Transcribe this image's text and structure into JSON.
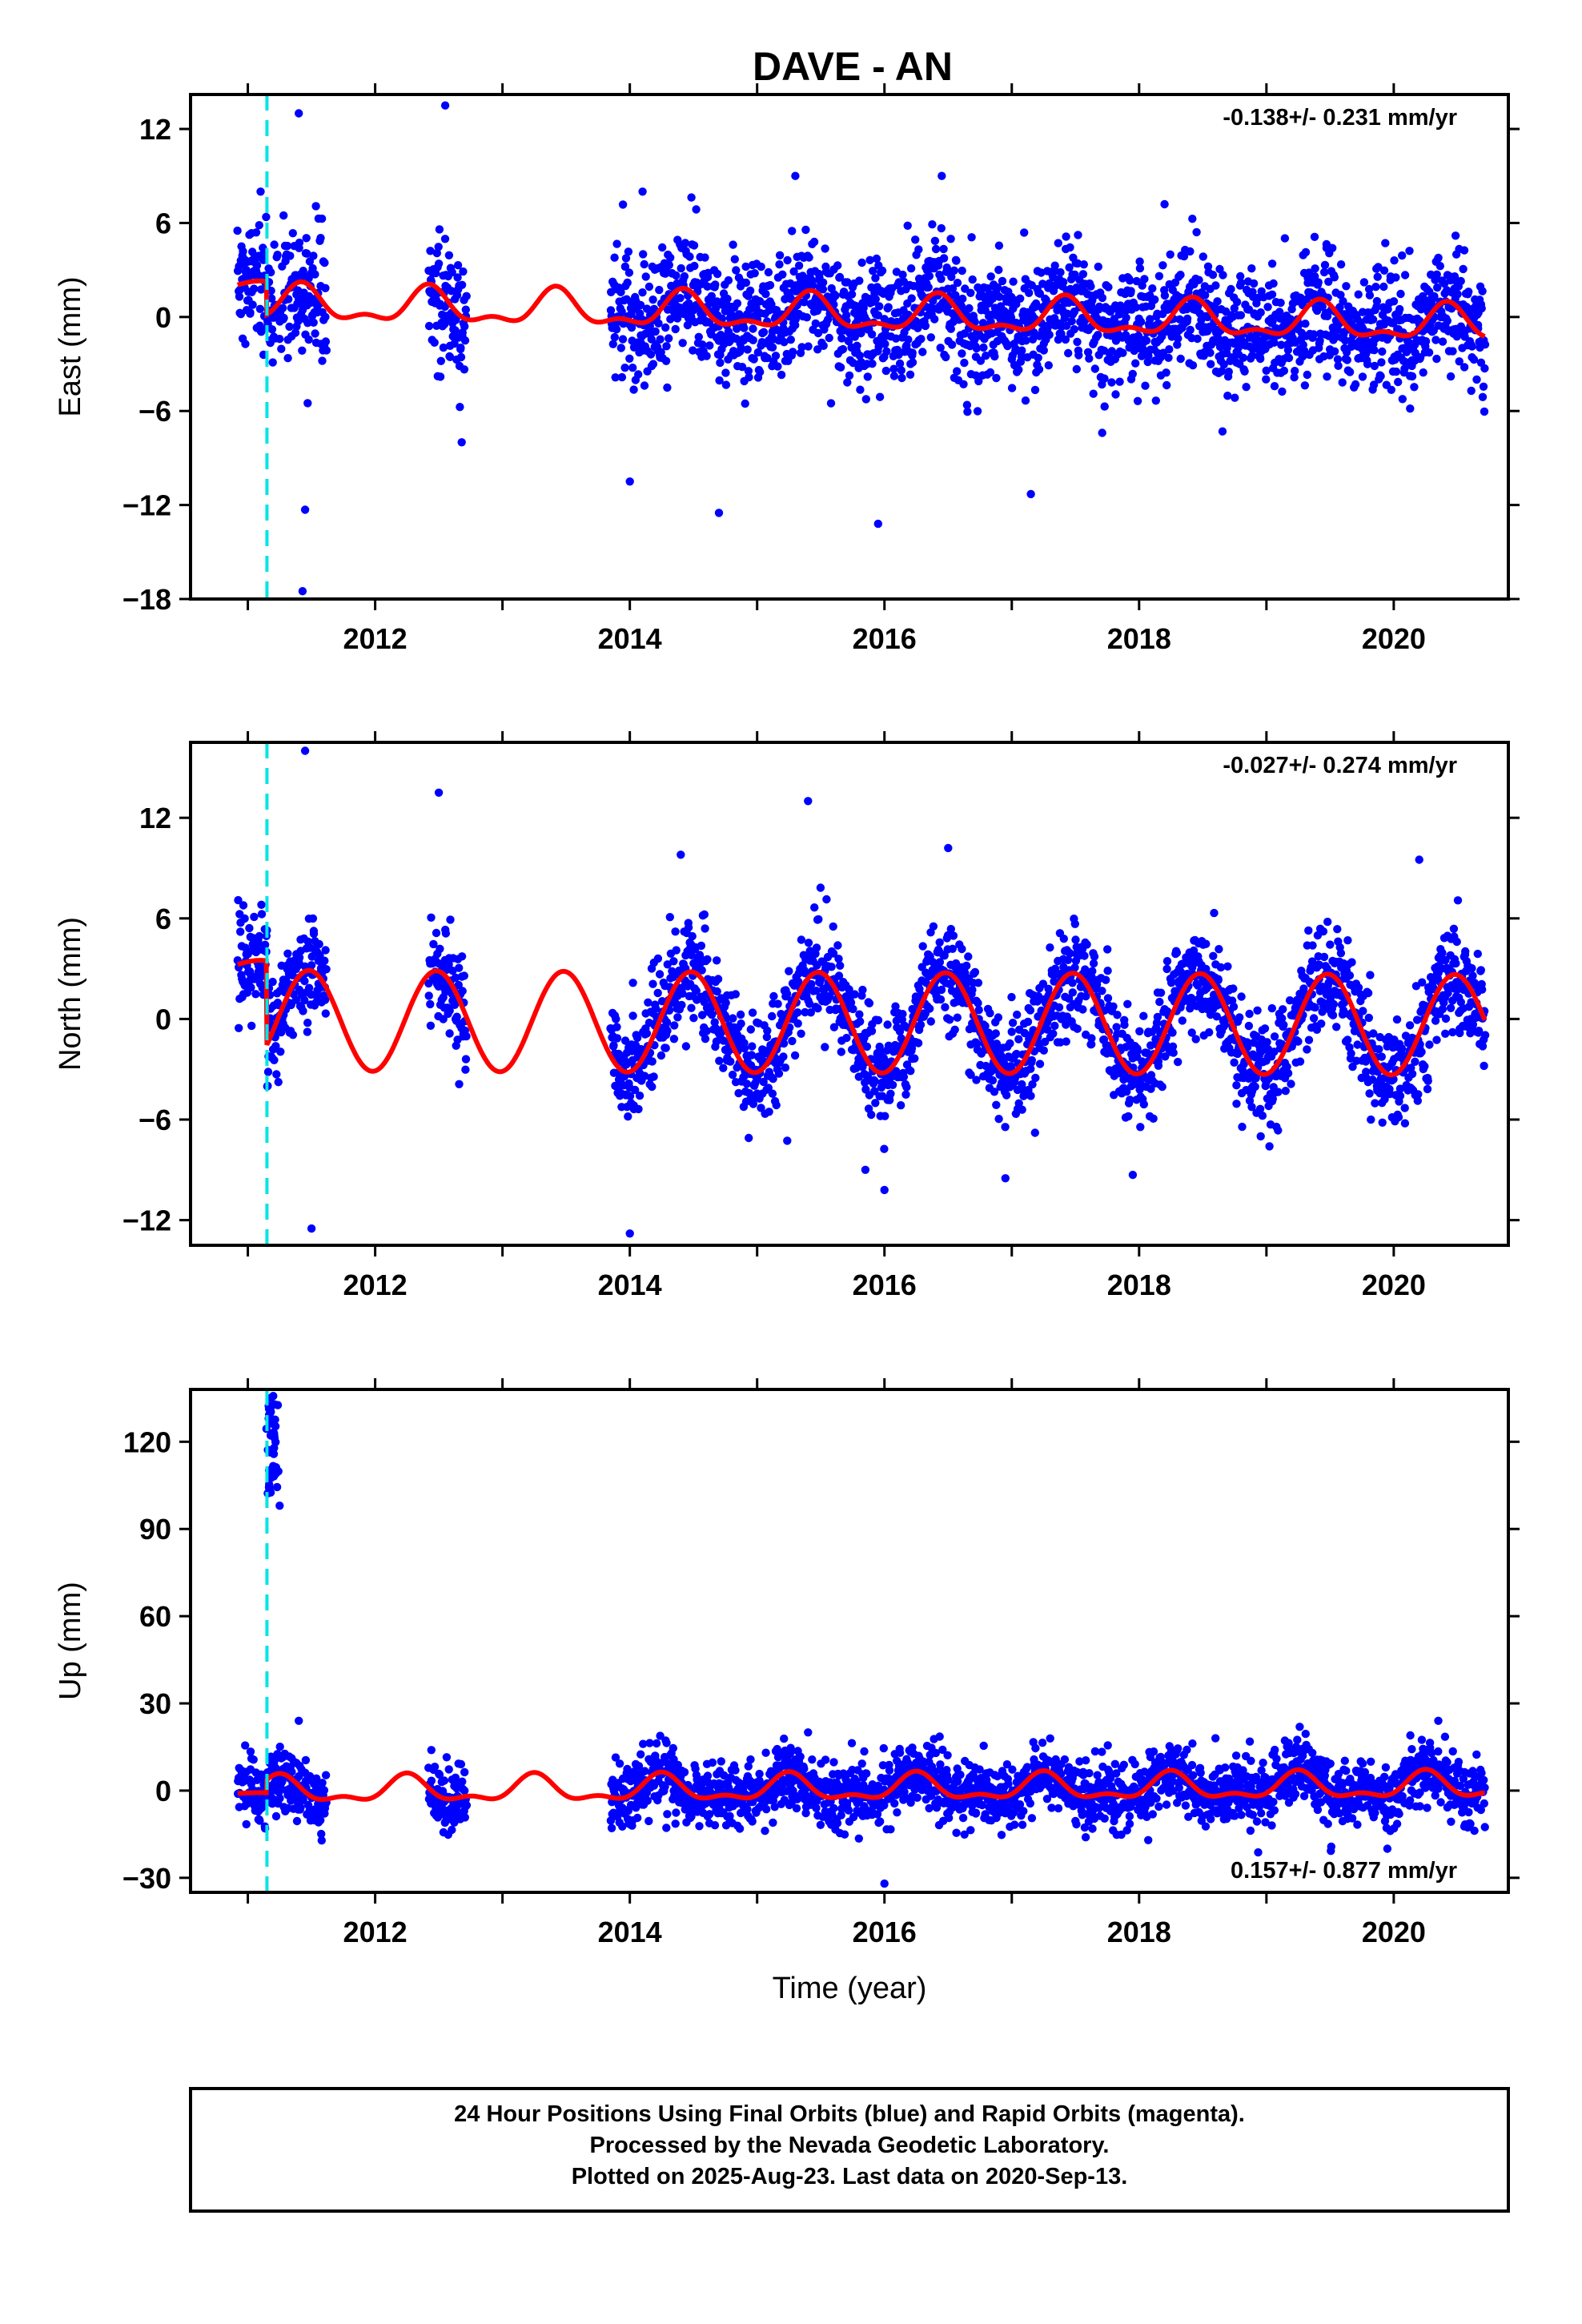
{
  "title": "DAVE - AN",
  "colors": {
    "final": "#0000ff",
    "model": "#ff0000",
    "event": "#00e5e5",
    "frame": "#000000"
  },
  "chart_data": [
    {
      "type": "scatter",
      "ylabel": "East (mm)",
      "xlabel": "",
      "xlim": [
        2010.55,
        2020.9
      ],
      "ylim": [
        -18,
        14.2
      ],
      "xticks": [
        "2012",
        "2014",
        "2016",
        "2018",
        "2020"
      ],
      "yticks": [
        "12",
        "6",
        "0",
        "−6",
        "−12",
        "−18"
      ],
      "rate": "-0.138+/- 0.231 mm/yr",
      "event_x": 2011.15,
      "data_ranges": [
        [
          2010.92,
          2011.62
        ],
        [
          2012.42,
          2012.72
        ],
        [
          2013.85,
          2020.72
        ]
      ],
      "noise_sd": 1.9,
      "model": {
        "offset": 0.25,
        "trend": -0.138,
        "epoch": 2015.0,
        "annual_amp": 1.0,
        "annual_phase_year": 2016.42,
        "semiannual_amp": 0.5,
        "step": {
          "x": 2011.15,
          "before": 2.0
        }
      },
      "outliers": [
        [
          2011.4,
          13.0
        ],
        [
          2011.1,
          8.0
        ],
        [
          2012.55,
          13.5
        ],
        [
          2011.45,
          -12.3
        ],
        [
          2011.43,
          -17.5
        ],
        [
          2011.47,
          -5.5
        ],
        [
          2012.68,
          -8.0
        ],
        [
          2014.0,
          -10.5
        ],
        [
          2014.7,
          -12.5
        ],
        [
          2015.95,
          -13.2
        ],
        [
          2017.15,
          -11.3
        ],
        [
          2015.3,
          9.0
        ],
        [
          2016.45,
          9.0
        ],
        [
          2018.2,
          7.2
        ],
        [
          2014.1,
          8.0
        ]
      ]
    },
    {
      "type": "scatter",
      "ylabel": "North (mm)",
      "xlabel": "",
      "xlim": [
        2010.55,
        2020.9
      ],
      "ylim": [
        -13.5,
        16.5
      ],
      "xticks": [
        "2012",
        "2014",
        "2016",
        "2018",
        "2020"
      ],
      "yticks": [
        "12",
        "6",
        "0",
        "−6",
        "−12"
      ],
      "rate": "-0.027+/- 0.274 mm/yr",
      "event_x": 2011.15,
      "data_ranges": [
        [
          2010.92,
          2011.62
        ],
        [
          2012.42,
          2012.72
        ],
        [
          2013.85,
          2020.72
        ]
      ],
      "noise_sd": 1.6,
      "model": {
        "offset": -0.2,
        "trend": -0.027,
        "epoch": 2015.0,
        "annual_amp": 3.0,
        "annual_phase_year": 2016.48,
        "semiannual_amp": 0.0,
        "step": {
          "x": 2011.15,
          "before": 3.2
        }
      },
      "outliers": [
        [
          2011.45,
          16.0
        ],
        [
          2012.5,
          13.5
        ],
        [
          2011.5,
          -12.5
        ],
        [
          2014.0,
          -12.8
        ],
        [
          2015.4,
          13.0
        ],
        [
          2016.5,
          10.2
        ],
        [
          2020.2,
          9.5
        ],
        [
          2016.0,
          -10.2
        ],
        [
          2017.95,
          -9.3
        ],
        [
          2016.95,
          -9.5
        ],
        [
          2015.85,
          -9.0
        ],
        [
          2014.4,
          9.8
        ]
      ]
    },
    {
      "type": "scatter",
      "ylabel": "Up (mm)",
      "xlabel": "Time (year)",
      "xlim": [
        2010.55,
        2020.9
      ],
      "ylim": [
        -35,
        138
      ],
      "xticks": [
        "2012",
        "2014",
        "2016",
        "2018",
        "2020"
      ],
      "yticks": [
        "120",
        "90",
        "60",
        "30",
        "0",
        "−30"
      ],
      "rate": "0.157+/- 0.877 mm/yr",
      "event_x": 2011.15,
      "data_ranges": [
        [
          2010.92,
          2011.62
        ],
        [
          2012.42,
          2012.72
        ],
        [
          2013.85,
          2020.72
        ]
      ],
      "noise_sd": 5.5,
      "model": {
        "offset": 0.5,
        "trend": 0.157,
        "epoch": 2015.0,
        "annual_amp": 4.0,
        "annual_phase_year": 2016.25,
        "semiannual_amp": 2.0,
        "step": {
          "x": 2011.15,
          "before": -1.0
        }
      },
      "cluster": {
        "x0": 2011.14,
        "x1": 2011.24,
        "y0": 100,
        "y1": 136,
        "count": 45
      },
      "outliers": [
        [
          2011.25,
          98.0
        ],
        [
          2016.0,
          -32.0
        ],
        [
          2019.95,
          -20.0
        ],
        [
          2020.35,
          24.0
        ],
        [
          2011.4,
          24.0
        ],
        [
          2015.4,
          20.0
        ],
        [
          2018.6,
          18.0
        ]
      ]
    }
  ],
  "footer": {
    "line1": "24 Hour Positions Using Final Orbits (blue) and Rapid Orbits (magenta).",
    "line2": "Processed by the Nevada Geodetic Laboratory.",
    "line3": "Plotted on 2025-Aug-23. Last data on 2020-Sep-13."
  }
}
